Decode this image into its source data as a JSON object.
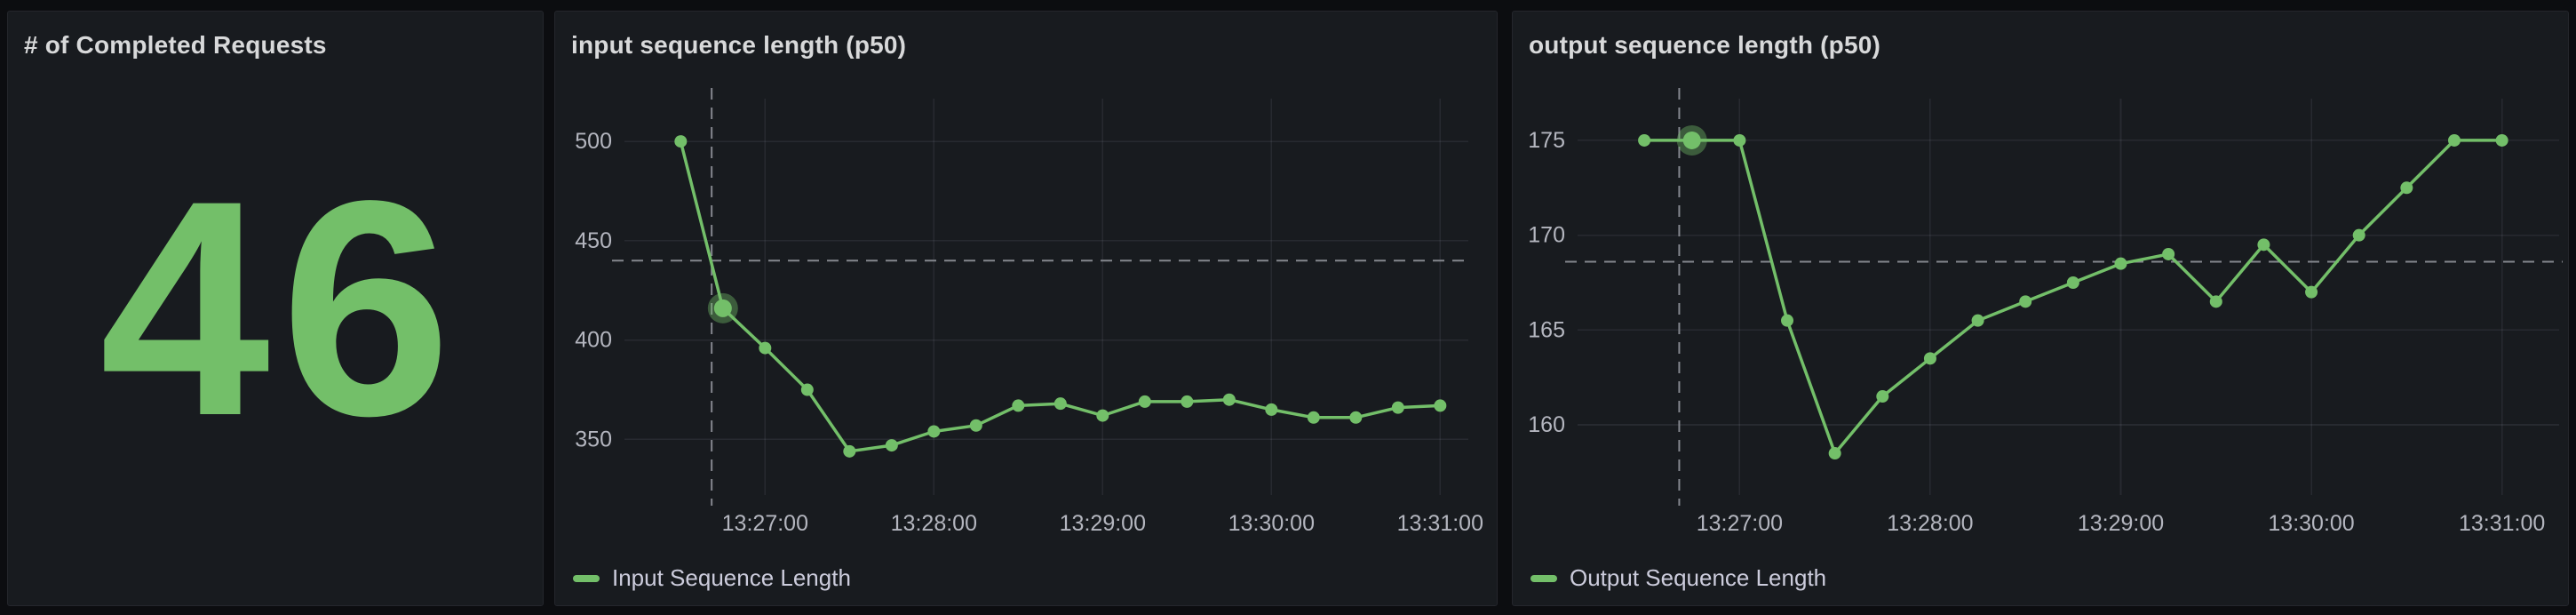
{
  "panels": {
    "stat": {
      "title": "# of Completed Requests",
      "value": "46",
      "value_color": "#73BF69"
    }
  },
  "theme": {
    "accent_green": "#73BF69",
    "panel_background": "#181b1f",
    "page_background": "#0c0d10",
    "text_primary": "#d8d9da",
    "text_secondary": "#b4b6bf"
  },
  "chart_data": [
    {
      "type": "line",
      "title": "input sequence length (p50)",
      "legend_position": "bottom-left",
      "grid": true,
      "x_range": [
        "13:26:10",
        "13:31:10"
      ],
      "ylim": [
        322,
        521.5
      ],
      "y_ticks": [
        350,
        400,
        450,
        500
      ],
      "x_ticks": [
        "13:27:00",
        "13:28:00",
        "13:29:00",
        "13:30:00",
        "13:31:00"
      ],
      "crosshair": {
        "x_time": "13:26:41",
        "y_value": 440
      },
      "hover_point_index": 1,
      "series": [
        {
          "name": "Input Sequence Length",
          "color": "#73BF69",
          "x": [
            "13:26:30",
            "13:26:45",
            "13:27:00",
            "13:27:15",
            "13:27:30",
            "13:27:45",
            "13:28:00",
            "13:28:15",
            "13:28:30",
            "13:28:45",
            "13:29:00",
            "13:29:15",
            "13:29:30",
            "13:29:45",
            "13:30:00",
            "13:30:15",
            "13:30:30",
            "13:30:45",
            "13:31:00"
          ],
          "values": [
            500,
            416,
            396,
            375,
            344,
            347,
            354,
            357,
            367,
            368,
            362,
            369,
            369,
            370,
            365,
            361,
            361,
            366,
            367
          ]
        }
      ]
    },
    {
      "type": "line",
      "title": "output sequence length (p50)",
      "legend_position": "bottom-left",
      "grid": true,
      "x_range": [
        "13:26:09",
        "13:31:18"
      ],
      "ylim": [
        156.3,
        177.2
      ],
      "y_ticks": [
        160,
        165,
        170,
        175
      ],
      "x_ticks": [
        "13:27:00",
        "13:28:00",
        "13:29:00",
        "13:30:00",
        "13:31:00"
      ],
      "crosshair": {
        "x_time": "13:26:41",
        "y_value": 168.6
      },
      "hover_point_index": 1,
      "series": [
        {
          "name": "Output Sequence Length",
          "color": "#73BF69",
          "x": [
            "13:26:30",
            "13:26:45",
            "13:27:00",
            "13:27:15",
            "13:27:30",
            "13:27:45",
            "13:28:00",
            "13:28:15",
            "13:28:30",
            "13:28:45",
            "13:29:00",
            "13:29:15",
            "13:29:30",
            "13:29:45",
            "13:30:00",
            "13:30:15",
            "13:30:30",
            "13:30:45",
            "13:31:00"
          ],
          "values": [
            175,
            175,
            175,
            165.5,
            158.5,
            161.5,
            163.5,
            165.5,
            166.5,
            167.5,
            168.5,
            169,
            166.5,
            169.5,
            167,
            170,
            172.5,
            175,
            175
          ]
        }
      ]
    }
  ]
}
